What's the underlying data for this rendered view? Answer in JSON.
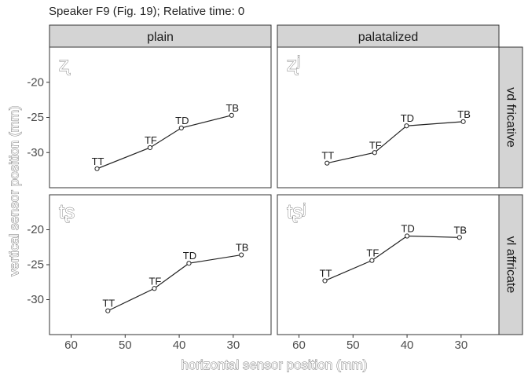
{
  "chart_data": {
    "type": "line",
    "title": "Speaker F9 (Fig. 19); Relative time: 0",
    "xlabel": "horizontal sensor position (mm)",
    "ylabel": "vertical sensor position (mm)",
    "x_reversed": true,
    "xlim": [
      64,
      23
    ],
    "ylim": [
      -35,
      -15
    ],
    "x_ticks": [
      60,
      50,
      40,
      30
    ],
    "y_ticks": [
      -20,
      -25,
      -30
    ],
    "grid": false,
    "column_strips": [
      "plain",
      "palatalized"
    ],
    "row_strips": [
      "vd fricative",
      "vl affricate"
    ],
    "panels": [
      {
        "col": 0,
        "row": 0,
        "symbol": "ʐ",
        "points": [
          {
            "label": "TT",
            "x": 55.2,
            "y": -32.3
          },
          {
            "label": "TF",
            "x": 45.4,
            "y": -29.3
          },
          {
            "label": "TD",
            "x": 39.6,
            "y": -26.5
          },
          {
            "label": "TB",
            "x": 30.3,
            "y": -24.7
          }
        ]
      },
      {
        "col": 1,
        "row": 0,
        "symbol": "ʐʲ",
        "points": [
          {
            "label": "TT",
            "x": 54.8,
            "y": -31.5
          },
          {
            "label": "TF",
            "x": 46.0,
            "y": -30.0
          },
          {
            "label": "TD",
            "x": 40.1,
            "y": -26.2
          },
          {
            "label": "TB",
            "x": 29.6,
            "y": -25.6
          }
        ]
      },
      {
        "col": 0,
        "row": 1,
        "symbol": "tʂ",
        "points": [
          {
            "label": "TT",
            "x": 53.2,
            "y": -31.6
          },
          {
            "label": "TF",
            "x": 44.6,
            "y": -28.4
          },
          {
            "label": "TD",
            "x": 38.2,
            "y": -24.8
          },
          {
            "label": "TB",
            "x": 28.5,
            "y": -23.6
          }
        ]
      },
      {
        "col": 1,
        "row": 1,
        "symbol": "tʂʲ",
        "points": [
          {
            "label": "TT",
            "x": 55.2,
            "y": -27.3
          },
          {
            "label": "TF",
            "x": 46.5,
            "y": -24.4
          },
          {
            "label": "TD",
            "x": 40.0,
            "y": -20.9
          },
          {
            "label": "TB",
            "x": 30.3,
            "y": -21.1
          }
        ]
      }
    ]
  }
}
